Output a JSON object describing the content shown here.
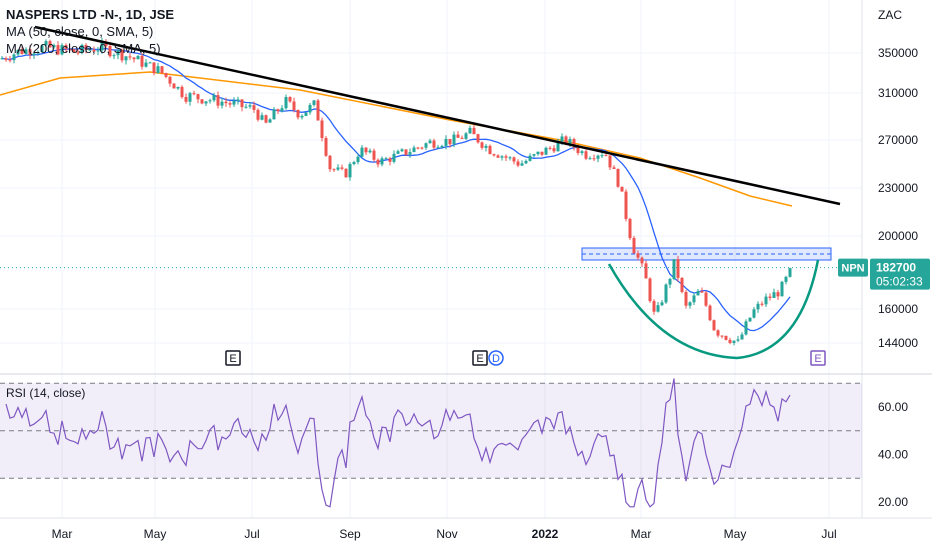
{
  "chart_data": {
    "type": "candlestick",
    "legend": {
      "title": "NASPERS LTD -N-, 1D, JSE",
      "ma50": "MA (50, close, 0, SMA, 5)",
      "ma200": "MA (200, close, 0, SMA, 5)"
    },
    "currency": "ZAC",
    "y_ticks": [
      {
        "value": 144000,
        "label": "144000"
      },
      {
        "value": 160000,
        "label": "160000"
      },
      {
        "value": 200000,
        "label": "200000"
      },
      {
        "value": 230000,
        "label": "230000"
      },
      {
        "value": 270000,
        "label": "270000"
      },
      {
        "value": 310000,
        "label": "310000"
      },
      {
        "value": 350000,
        "label": "350000"
      }
    ],
    "x_ticks": [
      "Mar",
      "May",
      "Jul",
      "Sep",
      "Nov",
      "2022",
      "Mar",
      "May",
      "Jul"
    ],
    "price_tag": {
      "symbol": "NPN",
      "price": "182700",
      "countdown": "05:02:33",
      "value": 182700
    },
    "events": [
      "E",
      "E",
      "D",
      "E"
    ],
    "rsi": {
      "label": "RSI (14, close)",
      "ticks": [
        {
          "value": 60,
          "label": "60.00"
        },
        {
          "value": 40,
          "label": "40.00"
        },
        {
          "value": 20,
          "label": "20.00"
        }
      ],
      "overbought": 70,
      "oversold": 30
    },
    "colors": {
      "up": "#26a69a",
      "down": "#ef5350",
      "ma50": "#2962ff",
      "ma200": "#ff9800",
      "trendline": "#000000",
      "cup": "#089981",
      "rsi": "#7e57c2",
      "band": "#2962ff"
    }
  }
}
